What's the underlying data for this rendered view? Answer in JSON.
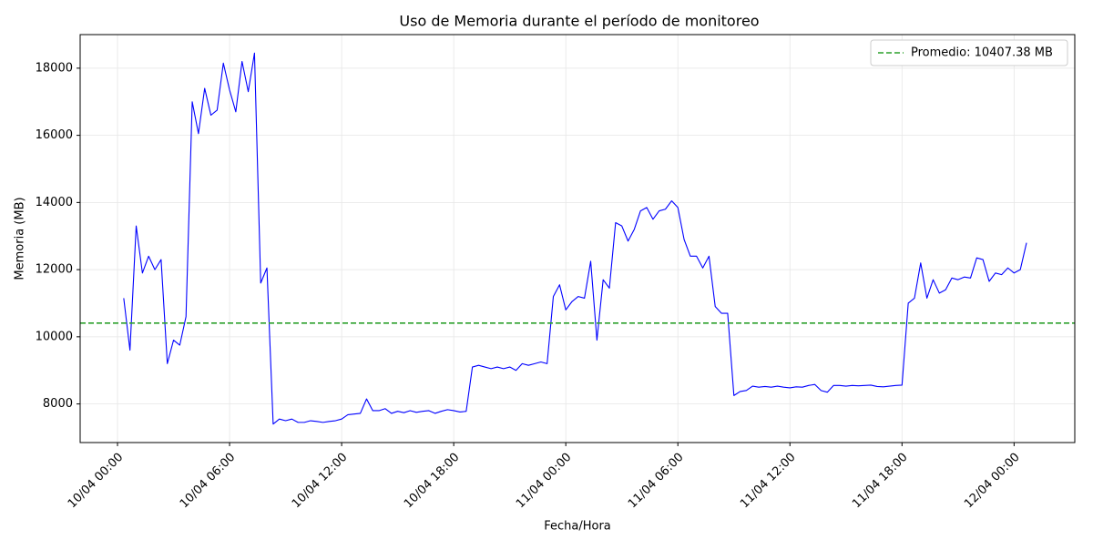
{
  "chart_data": {
    "type": "line",
    "title": "Uso de Memoria durante el período de monitoreo",
    "xlabel": "Fecha/Hora",
    "ylabel": "Memoria (MB)",
    "x": [
      "10/04 00:20",
      "10/04 00:40",
      "10/04 01:00",
      "10/04 01:20",
      "10/04 01:40",
      "10/04 02:00",
      "10/04 02:20",
      "10/04 02:40",
      "10/04 03:00",
      "10/04 03:20",
      "10/04 03:40",
      "10/04 04:00",
      "10/04 04:20",
      "10/04 04:40",
      "10/04 05:00",
      "10/04 05:20",
      "10/04 05:40",
      "10/04 06:00",
      "10/04 06:20",
      "10/04 06:40",
      "10/04 07:00",
      "10/04 07:20",
      "10/04 07:40",
      "10/04 08:00",
      "10/04 08:20",
      "10/04 08:40",
      "10/04 09:00",
      "10/04 09:20",
      "10/04 09:40",
      "10/04 10:00",
      "10/04 10:20",
      "10/04 10:40",
      "10/04 11:00",
      "10/04 11:20",
      "10/04 11:40",
      "10/04 12:00",
      "10/04 12:20",
      "10/04 12:40",
      "10/04 13:00",
      "10/04 13:20",
      "10/04 13:40",
      "10/04 14:00",
      "10/04 14:20",
      "10/04 14:40",
      "10/04 15:00",
      "10/04 15:20",
      "10/04 15:40",
      "10/04 16:00",
      "10/04 16:20",
      "10/04 16:40",
      "10/04 17:00",
      "10/04 17:20",
      "10/04 17:40",
      "10/04 18:00",
      "10/04 18:20",
      "10/04 18:40",
      "10/04 19:00",
      "10/04 19:20",
      "10/04 19:40",
      "10/04 20:00",
      "10/04 20:20",
      "10/04 20:40",
      "10/04 21:00",
      "10/04 21:20",
      "10/04 21:40",
      "10/04 22:00",
      "10/04 22:20",
      "10/04 22:40",
      "10/04 23:00",
      "10/04 23:20",
      "10/04 23:40",
      "11/04 00:00",
      "11/04 00:20",
      "11/04 00:40",
      "11/04 01:00",
      "11/04 01:20",
      "11/04 01:40",
      "11/04 02:00",
      "11/04 02:20",
      "11/04 02:40",
      "11/04 03:00",
      "11/04 03:20",
      "11/04 03:40",
      "11/04 04:00",
      "11/04 04:20",
      "11/04 04:40",
      "11/04 05:00",
      "11/04 05:20",
      "11/04 05:40",
      "11/04 06:00",
      "11/04 06:20",
      "11/04 06:40",
      "11/04 07:00",
      "11/04 07:20",
      "11/04 07:40",
      "11/04 08:00",
      "11/04 08:20",
      "11/04 08:40",
      "11/04 09:00",
      "11/04 09:20",
      "11/04 09:40",
      "11/04 10:00",
      "11/04 10:20",
      "11/04 10:40",
      "11/04 11:00",
      "11/04 11:20",
      "11/04 11:40",
      "11/04 12:00",
      "11/04 12:20",
      "11/04 12:40",
      "11/04 13:00",
      "11/04 13:20",
      "11/04 13:40",
      "11/04 14:00",
      "11/04 14:20",
      "11/04 14:40",
      "11/04 15:00",
      "11/04 15:20",
      "11/04 15:40",
      "11/04 16:00",
      "11/04 16:20",
      "11/04 16:40",
      "11/04 17:00",
      "11/04 17:20",
      "11/04 17:40",
      "11/04 18:00",
      "11/04 18:20",
      "11/04 18:40",
      "11/04 19:00",
      "11/04 19:20",
      "11/04 19:40",
      "11/04 20:00",
      "11/04 20:20",
      "11/04 20:40",
      "11/04 21:00",
      "11/04 21:20",
      "11/04 21:40",
      "11/04 22:00",
      "11/04 22:20",
      "11/04 22:40",
      "11/04 23:00",
      "11/04 23:20",
      "11/04 23:40",
      "12/04 00:00",
      "12/04 00:20",
      "12/04 00:40"
    ],
    "series": [
      {
        "name": "Memoria",
        "color": "#0000ff",
        "values": [
          11150,
          9600,
          13300,
          11900,
          12400,
          12000,
          12300,
          9200,
          9900,
          9750,
          10600,
          17000,
          16050,
          17400,
          16600,
          16750,
          18150,
          17350,
          16700,
          18200,
          17300,
          18450,
          11600,
          12050,
          7400,
          7550,
          7500,
          7550,
          7450,
          7450,
          7500,
          7480,
          7450,
          7480,
          7500,
          7550,
          7680,
          7700,
          7720,
          8150,
          7800,
          7800,
          7860,
          7720,
          7780,
          7740,
          7800,
          7750,
          7780,
          7800,
          7720,
          7780,
          7830,
          7800,
          7760,
          7780,
          9100,
          9150,
          9100,
          9050,
          9100,
          9050,
          9100,
          9000,
          9200,
          9150,
          9200,
          9250,
          9200,
          11200,
          11550,
          10800,
          11050,
          11200,
          11150,
          12250,
          9900,
          11700,
          11450,
          13400,
          13300,
          12850,
          13200,
          13750,
          13850,
          13500,
          13750,
          13800,
          14050,
          13850,
          12900,
          12400,
          12400,
          12050,
          12400,
          10900,
          10700,
          10700,
          8250,
          8370,
          8400,
          8530,
          8500,
          8520,
          8500,
          8530,
          8500,
          8480,
          8510,
          8500,
          8550,
          8580,
          8400,
          8350,
          8550,
          8550,
          8530,
          8550,
          8540,
          8550,
          8560,
          8520,
          8510,
          8530,
          8550,
          8560,
          11000,
          11150,
          12200,
          11150,
          11700,
          11300,
          11400,
          11750,
          11700,
          11780,
          11750,
          12350,
          12300,
          11650,
          11900,
          11850,
          12050,
          11900,
          12000,
          12800
        ]
      }
    ],
    "hline": {
      "value": 10407.38,
      "label": "Promedio: 10407.38 MB",
      "color": "#2ca02c"
    },
    "xlim": [
      "09/04 22:00",
      "12/04 03:15"
    ],
    "xticks": [
      "10/04 00:00",
      "10/04 06:00",
      "10/04 12:00",
      "10/04 18:00",
      "11/04 00:00",
      "11/04 06:00",
      "11/04 12:00",
      "11/04 18:00",
      "12/04 00:00"
    ],
    "ylim": [
      6850,
      19000
    ],
    "yticks": [
      8000,
      10000,
      12000,
      14000,
      16000,
      18000
    ],
    "grid": true,
    "legend": "upper right"
  }
}
